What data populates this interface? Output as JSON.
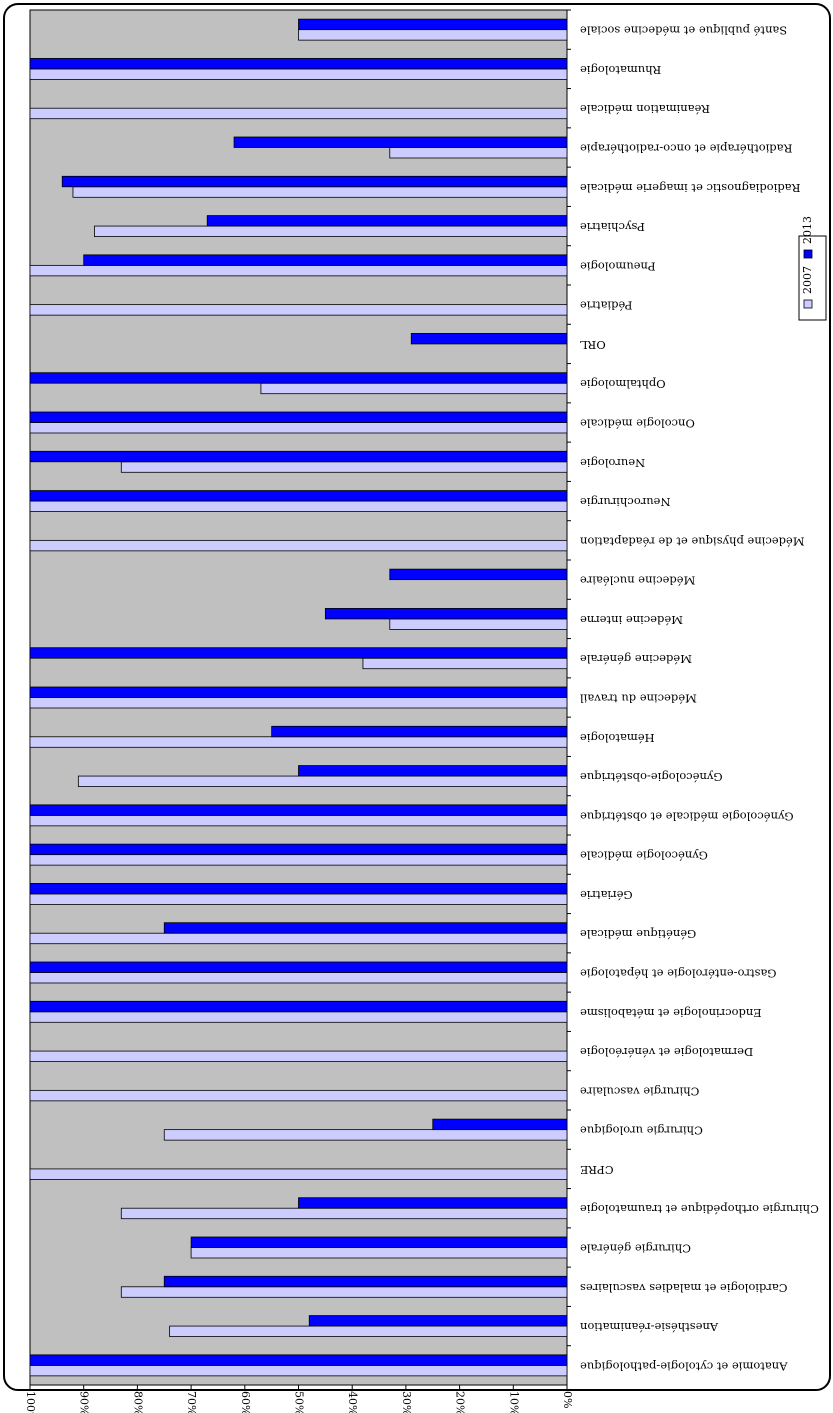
{
  "colors": {
    "plot_background": "#c0c0c0",
    "series_2007": "#ccccff",
    "series_2013": "#0000ff"
  },
  "chart_data": {
    "type": "bar",
    "orientation": "horizontal, rotated 180 degrees",
    "title": "",
    "xlabel": "",
    "ylabel": "",
    "xlim": [
      0,
      100
    ],
    "x_ticks": [
      "0%",
      "10%",
      "20%",
      "30%",
      "40%",
      "50%",
      "60%",
      "70%",
      "80%",
      "90%",
      "100%"
    ],
    "grid": false,
    "legend_position": "right",
    "categories": [
      "Anatomie et cytologie-pathologique",
      "Anesthésie-réanimation",
      "Cardiologie et maladies vasculaires",
      "Chirurgie générale",
      "Chirurgie orthopédique et traumatologie",
      "CPRE",
      "Chirurgie urologique",
      "Chirurgie vasculaire",
      "Dermatologie et vénéréologie",
      "Endocrinologie et métabolisme",
      "Gastro-entérologie et hépatologie",
      "Génétique médicale",
      "Gériatrie",
      "Gynécologie médicale",
      "Gynécologie médicale et obstétrique",
      "Gynécologie-obstétrique",
      "Hématologie",
      "Médecine du travail",
      "Médecine générale",
      "Médecine interne",
      "Médecine nucléaire",
      "Médecine physique et de réadaptation",
      "Neurochirurgie",
      "Neurologie",
      "Oncologie médicale",
      "Ophtalmologie",
      "ORL",
      "Pédiatrie",
      "Pneumologie",
      "Psychiatrie",
      "Radiodiagnostic et imagerie médicale",
      "Radiothérapie et onco-radiothérapie",
      "Réanimation médicale",
      "Rhumatologie",
      "Santé publique et médecine sociale"
    ],
    "series": [
      {
        "name": "2007",
        "values": [
          100,
          74,
          83,
          70,
          83,
          100,
          75,
          100,
          100,
          100,
          100,
          100,
          100,
          100,
          100,
          91,
          100,
          100,
          38,
          33,
          0,
          100,
          100,
          83,
          100,
          57,
          0,
          100,
          100,
          88,
          92,
          33,
          100,
          100,
          50
        ]
      },
      {
        "name": "2013",
        "values": [
          100,
          48,
          75,
          70,
          50,
          0,
          25,
          0,
          0,
          100,
          100,
          75,
          100,
          100,
          100,
          50,
          55,
          100,
          100,
          45,
          33,
          0,
          100,
          100,
          100,
          100,
          29,
          0,
          90,
          67,
          94,
          62,
          0,
          100,
          50
        ]
      }
    ]
  }
}
